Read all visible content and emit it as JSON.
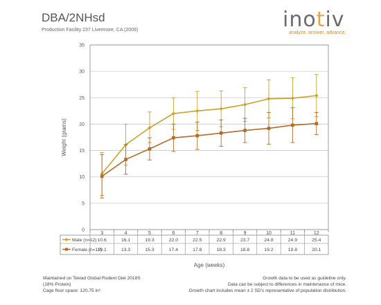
{
  "header": {
    "title": "DBA/2NHsd",
    "subtitle": "Production Facility 237 Livermore, CA (2009)",
    "logo_prefix": "ino",
    "logo_accent": "t",
    "logo_suffix": "iv",
    "tagline": "analyze. answer. advance."
  },
  "footer": {
    "left": [
      "Maintained on Teklad Global Rodent Diet 2018S",
      "(18% Protein)",
      "Cage floor space: 120.75 in²"
    ],
    "right": [
      "Growth data to be used as guideline only.",
      "Data can be subject to differences in maintenance of mice.",
      "Growth chart includes mean ± 2 SD's representative of population distribution."
    ]
  },
  "colors": {
    "male": "#c9a227",
    "female": "#b56a24",
    "grid": "#c8c8c8",
    "axis": "#888888",
    "logo_accent": "#e8a43c"
  },
  "chart_data": {
    "type": "line",
    "xlabel": "Age (weeks)",
    "ylabel": "Weight (grams)",
    "ylim": [
      0,
      35
    ],
    "yticks": [
      0,
      5,
      10,
      15,
      20,
      25,
      30,
      35
    ],
    "categories": [
      "3",
      "4",
      "5",
      "6",
      "7",
      "8",
      "9",
      "10",
      "11",
      "12"
    ],
    "grid": true,
    "series": [
      {
        "name": "Male (n=12)",
        "color": "#c9a227",
        "values": [
          10.6,
          16.1,
          19.3,
          22.0,
          22.5,
          22.9,
          23.7,
          24.8,
          24.9,
          25.4
        ],
        "labels": [
          "10.6",
          "16.1",
          "19.3",
          "22.0",
          "22.5",
          "22.9",
          "23.7",
          "24.8",
          "24.9",
          "25.4"
        ],
        "err_low": [
          6.5,
          12.2,
          16.5,
          19.0,
          18.8,
          19.5,
          20.5,
          21.2,
          21.0,
          21.4
        ],
        "err_high": [
          14.6,
          20.0,
          22.3,
          25.0,
          26.2,
          26.3,
          26.9,
          28.4,
          28.8,
          29.4
        ]
      },
      {
        "name": "Female (n=12)",
        "color": "#b56a24",
        "values": [
          10.1,
          13.3,
          15.3,
          17.4,
          17.8,
          18.3,
          18.8,
          19.2,
          19.8,
          20.1
        ],
        "labels": [
          "10.1",
          "13.3",
          "15.3",
          "17.4",
          "17.8",
          "18.3",
          "18.8",
          "19.2",
          "19.8",
          "20.1"
        ],
        "err_low": [
          6.0,
          10.5,
          13.2,
          14.8,
          15.2,
          15.8,
          16.5,
          16.2,
          16.5,
          18.0
        ],
        "err_high": [
          14.2,
          16.1,
          17.4,
          20.0,
          20.4,
          20.8,
          21.1,
          22.2,
          23.1,
          22.2
        ]
      }
    ]
  }
}
